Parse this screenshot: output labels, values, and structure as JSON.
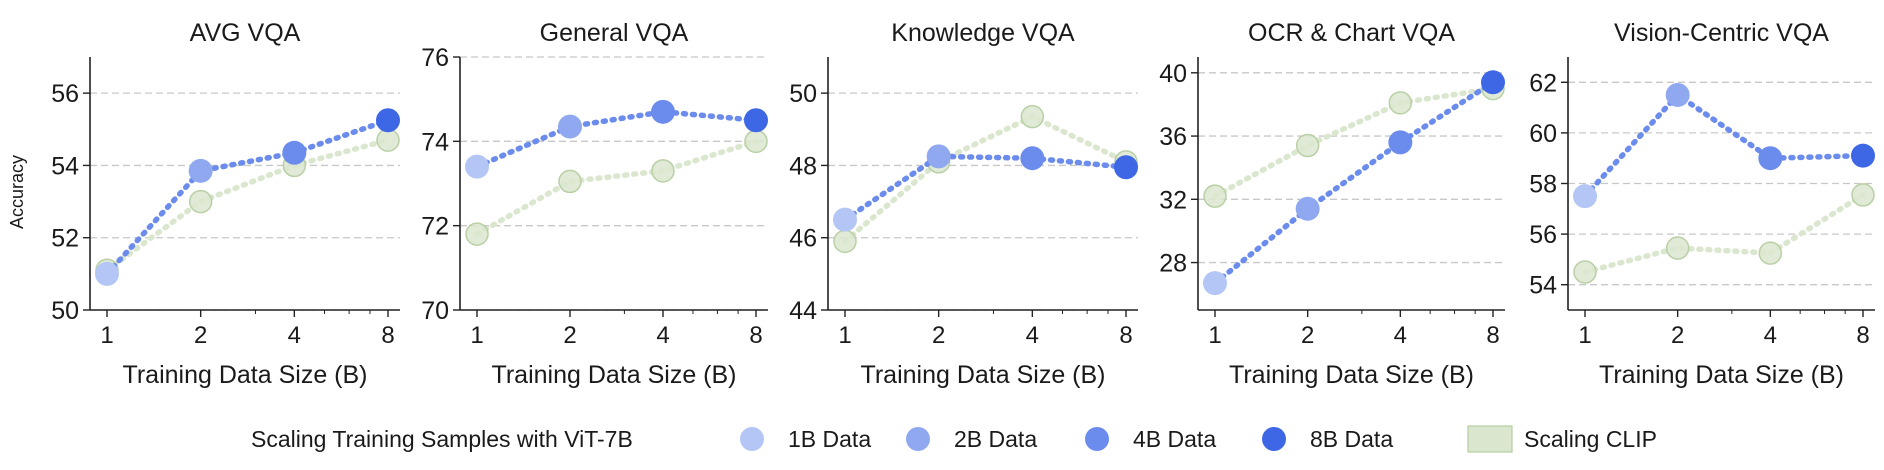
{
  "figure": {
    "ylabel": "Accuracy"
  },
  "legend": {
    "title": "Scaling Training Samples with ViT-7B",
    "entries": [
      {
        "label": "1B Data",
        "color": "#b4c6f5",
        "kind": "dot"
      },
      {
        "label": "2B Data",
        "color": "#8fa8f0",
        "kind": "dot"
      },
      {
        "label": "4B Data",
        "color": "#6b8cec",
        "kind": "dot"
      },
      {
        "label": "8B Data",
        "color": "#3e67e6",
        "kind": "dot"
      },
      {
        "label": "Scaling CLIP",
        "color": "#dbe6cf",
        "kind": "patch"
      }
    ]
  },
  "chart_data": [
    {
      "type": "line",
      "title": "AVG VQA",
      "xlabel": "Training Data Size (B)",
      "ylabel": "Accuracy",
      "x": [
        1,
        2,
        4,
        8
      ],
      "xscale": "log2",
      "ylim": [
        50,
        57
      ],
      "yticks": [
        50,
        52,
        54,
        56
      ],
      "series": [
        {
          "name": "Scaling Training Samples with ViT-7B",
          "values": [
            51.0,
            53.85,
            54.35,
            55.25
          ]
        },
        {
          "name": "Scaling CLIP",
          "values": [
            51.1,
            53.0,
            54.0,
            54.7
          ]
        }
      ]
    },
    {
      "type": "line",
      "title": "General VQA",
      "xlabel": "Training Data Size (B)",
      "ylabel": "",
      "x": [
        1,
        2,
        4,
        8
      ],
      "xscale": "log2",
      "ylim": [
        70,
        76
      ],
      "yticks": [
        70,
        72,
        74,
        76
      ],
      "series": [
        {
          "name": "Scaling Training Samples with ViT-7B",
          "values": [
            73.4,
            74.35,
            74.7,
            74.5
          ]
        },
        {
          "name": "Scaling CLIP",
          "values": [
            71.8,
            73.05,
            73.3,
            74.0
          ]
        }
      ]
    },
    {
      "type": "line",
      "title": "Knowledge VQA",
      "xlabel": "Training Data Size (B)",
      "ylabel": "",
      "x": [
        1,
        2,
        4,
        8
      ],
      "xscale": "log2",
      "ylim": [
        44,
        51
      ],
      "yticks": [
        44,
        46,
        48,
        50
      ],
      "series": [
        {
          "name": "Scaling Training Samples with ViT-7B",
          "values": [
            46.5,
            48.25,
            48.2,
            47.95
          ]
        },
        {
          "name": "Scaling CLIP",
          "values": [
            45.9,
            48.1,
            49.35,
            48.1
          ]
        }
      ]
    },
    {
      "type": "line",
      "title": "OCR & Chart VQA",
      "xlabel": "Training Data Size (B)",
      "ylabel": "",
      "x": [
        1,
        2,
        4,
        8
      ],
      "xscale": "log2",
      "ylim": [
        25,
        41
      ],
      "yticks": [
        28,
        32,
        36,
        40
      ],
      "series": [
        {
          "name": "Scaling Training Samples with ViT-7B",
          "values": [
            26.7,
            31.4,
            35.6,
            39.4
          ]
        },
        {
          "name": "Scaling CLIP",
          "values": [
            32.2,
            35.4,
            38.1,
            39.0
          ]
        }
      ]
    },
    {
      "type": "line",
      "title": "Vision-Centric VQA",
      "xlabel": "Training Data Size (B)",
      "ylabel": "",
      "x": [
        1,
        2,
        4,
        8
      ],
      "xscale": "log2",
      "ylim": [
        53,
        63
      ],
      "yticks": [
        54,
        56,
        58,
        60,
        62
      ],
      "series": [
        {
          "name": "Scaling Training Samples with ViT-7B",
          "values": [
            57.5,
            61.5,
            59.0,
            59.1
          ]
        },
        {
          "name": "Scaling CLIP",
          "values": [
            54.5,
            55.45,
            55.25,
            57.55
          ]
        }
      ]
    }
  ]
}
